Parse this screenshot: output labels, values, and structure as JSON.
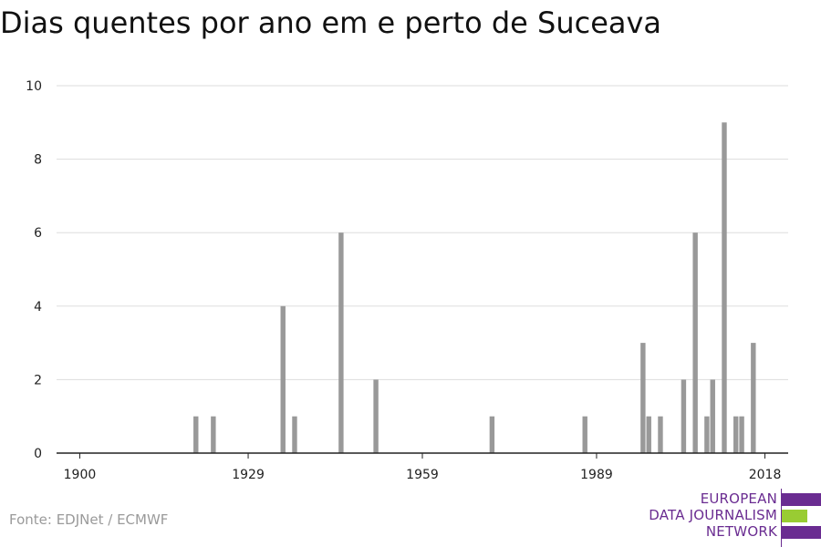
{
  "title": "Dias quentes por ano em e perto de Suceava",
  "source": "Fonte: EDJNet / ECMWF",
  "logo": {
    "lines": [
      "EUROPEAN",
      "DATA JOURNALISM",
      "NETWORK"
    ],
    "colors": {
      "purple": "#6a2c91",
      "green": "#99cc33"
    }
  },
  "chart_data": {
    "type": "bar",
    "title": "Dias quentes por ano em e perto de Suceava",
    "xlabel": "",
    "ylabel": "",
    "xlim": [
      1896,
      2022
    ],
    "ylim": [
      0,
      10
    ],
    "x_ticks": [
      1900,
      1929,
      1959,
      1989,
      2018
    ],
    "y_ticks": [
      0,
      2,
      4,
      6,
      8,
      10
    ],
    "grid": true,
    "bar_color": "#999999",
    "x": [
      1920,
      1923,
      1935,
      1937,
      1945,
      1951,
      1971,
      1987,
      1997,
      1998,
      2000,
      2004,
      2006,
      2008,
      2009,
      2011,
      2013,
      2014,
      2016
    ],
    "values": [
      1,
      1,
      4,
      1,
      6,
      2,
      1,
      1,
      3,
      1,
      1,
      2,
      6,
      1,
      2,
      9,
      1,
      1,
      3
    ]
  }
}
